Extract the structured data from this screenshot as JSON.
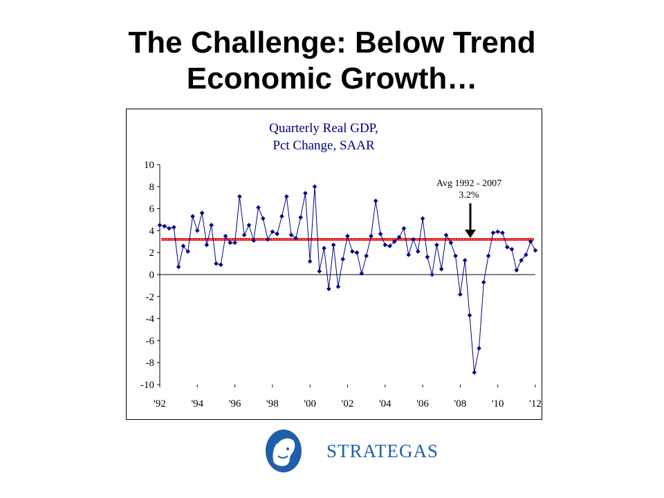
{
  "slide": {
    "title_line1": "The Challenge: Below Trend",
    "title_line2": "Economic Growth…"
  },
  "chart_data": {
    "type": "line",
    "title_lines": [
      "Quarterly Real GDP,",
      "Pct Change, SAAR"
    ],
    "xlabel": "",
    "ylabel": "",
    "x_tick_labels": [
      "'92",
      "'94",
      "'96",
      "'98",
      "'00",
      "'02",
      "'04",
      "'06",
      "'08",
      "'10",
      "'12"
    ],
    "x_tick_values": [
      1992,
      1994,
      1996,
      1998,
      2000,
      2002,
      2004,
      2006,
      2008,
      2010,
      2012
    ],
    "xlim": [
      1992,
      2012
    ],
    "ylim": [
      -10,
      10
    ],
    "y_ticks": [
      10,
      8,
      6,
      4,
      2,
      0,
      -2,
      -4,
      -6,
      -8,
      -10
    ],
    "grid": false,
    "series": [
      {
        "start": 1992.0,
        "step": 0.25,
        "values": [
          4.5,
          4.4,
          4.2,
          4.3,
          0.7,
          2.6,
          2.1,
          5.3,
          4.0,
          5.6,
          2.7,
          4.5,
          1.0,
          0.9,
          3.5,
          2.9,
          2.9,
          7.1,
          3.6,
          4.5,
          3.1,
          6.1,
          5.1,
          3.2,
          3.9,
          3.7,
          5.3,
          7.1,
          3.6,
          3.3,
          5.2,
          7.4,
          1.2,
          8.0,
          0.3,
          2.4,
          -1.3,
          2.7,
          -1.1,
          1.4,
          3.5,
          2.1,
          2.0,
          0.1,
          1.7,
          3.5,
          6.7,
          3.7,
          2.7,
          2.6,
          3.0,
          3.4,
          4.2,
          1.8,
          3.2,
          2.1,
          5.1,
          1.6,
          0.0,
          2.7,
          0.5,
          3.6,
          2.9,
          1.7,
          -1.8,
          1.3,
          -3.7,
          -8.9,
          -6.7,
          -0.7,
          1.7,
          3.8,
          3.9,
          3.8,
          2.5,
          2.3,
          0.4,
          1.3,
          1.8,
          3.0,
          2.2
        ]
      }
    ],
    "reference_line": {
      "value": 3.2,
      "color": "#e02020"
    },
    "series_color": "#000080",
    "annotation": {
      "line1": "Avg 1992 - 2007",
      "line2": "3.2%",
      "arrow": "down"
    }
  },
  "logo": {
    "text": "STRATEGAS",
    "icon": "athena-head-icon",
    "color": "#1f5faa"
  }
}
